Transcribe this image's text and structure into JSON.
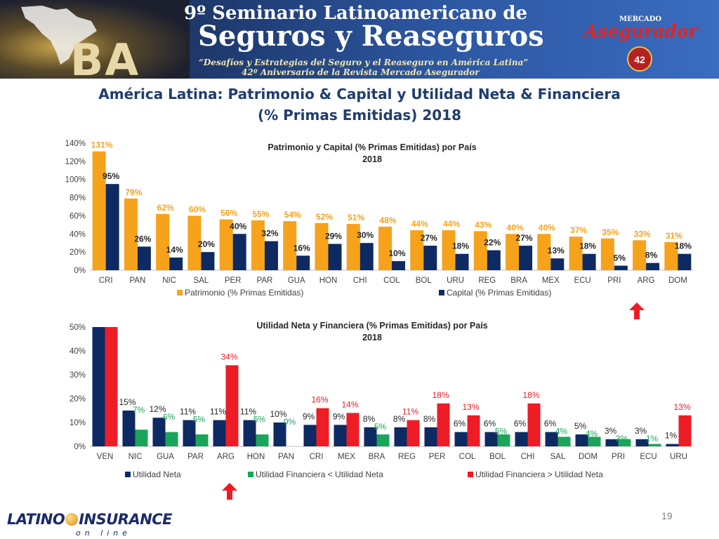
{
  "banner": {
    "line1": "9º Seminario Latinoamericano de",
    "line2": "Seguros y Reaseguros",
    "line3": "“Desafíos y Estrategias del Seguro y el Reaseguro en América Latina”",
    "line4": "42º Aniversario de la Revista Mercado Asegurador",
    "city_mark": "BA",
    "brand_small": "MERCADO",
    "brand_big": "Asegurador",
    "brand_badge": "42"
  },
  "page_title": {
    "line1": "América Latina: Patrimonio & Capital y Utilidad Neta & Financiera",
    "line2": "(% Primas Emitidas) 2018"
  },
  "colors": {
    "orange": "#F7A21B",
    "navy": "#0E2A63",
    "green": "#1AA55A",
    "red": "#EE1C25"
  },
  "chart_data": [
    {
      "type": "bar",
      "title": "Patrimonio y Capital (% Primas Emitidas) por País",
      "subtitle": "2018",
      "categories": [
        "CRI",
        "PAN",
        "NIC",
        "SAL",
        "PER",
        "PAR",
        "GUA",
        "HON",
        "CHI",
        "COL",
        "BOL",
        "URU",
        "REG",
        "BRA",
        "MEX",
        "ECU",
        "PRI",
        "ARG",
        "DOM"
      ],
      "series": [
        {
          "name": "Patrimonio (% Primas Emitidas)",
          "color": "#F7A21B",
          "values": [
            131,
            79,
            62,
            60,
            56,
            55,
            54,
            52,
            51,
            48,
            44,
            44,
            43,
            40,
            40,
            37,
            35,
            33,
            31
          ]
        },
        {
          "name": "Capital (% Primas Emitidas)",
          "color": "#0E2A63",
          "values": [
            95,
            26,
            14,
            20,
            40,
            32,
            16,
            29,
            30,
            10,
            27,
            18,
            22,
            27,
            13,
            18,
            5,
            8,
            18
          ]
        }
      ],
      "ylim": [
        0,
        140
      ],
      "yticks": [
        "0%",
        "20%",
        "40%",
        "60%",
        "80%",
        "100%",
        "120%",
        "140%"
      ],
      "legend": "bottom",
      "grid": false,
      "highlight": "ARG"
    },
    {
      "type": "bar",
      "title": "Utilidad Neta y Financiera (% Primas Emitidas) por País",
      "subtitle": "2018",
      "categories": [
        "VEN",
        "NIC",
        "GUA",
        "PAR",
        "ARG",
        "HON",
        "PAN",
        "CRI",
        "MEX",
        "BRA",
        "REG",
        "PER",
        "COL",
        "BOL",
        "CHI",
        "SAL",
        "DOM",
        "PRI",
        "ECU",
        "URU"
      ],
      "series": [
        {
          "name": "Utilidad Neta",
          "color": "#0E2A63",
          "values": [
            50,
            15,
            12,
            11,
            11,
            11,
            10,
            9,
            9,
            8,
            8,
            8,
            6,
            6,
            6,
            6,
            5,
            3,
            3,
            1
          ],
          "labels": [
            "",
            "15%",
            "12%",
            "11%",
            "11%",
            "11%",
            "10%",
            "9%",
            "9%",
            "8%",
            "8%",
            "8%",
            "6%",
            "6%",
            "6%",
            "6%",
            "5%",
            "3%",
            "3%",
            "1%"
          ]
        },
        {
          "name": "Utilidad Financiera < Utilidad Neta",
          "color": "#1AA55A"
        },
        {
          "name": "Utilidad Financiera > Utilidad Neta",
          "color": "#EE1C25"
        }
      ],
      "financiera": {
        "values": [
          50,
          7,
          6,
          5,
          34,
          5,
          0,
          16,
          14,
          5,
          11,
          18,
          13,
          5,
          18,
          4,
          4,
          3,
          1,
          13
        ],
        "labels": [
          "",
          "7%",
          "6%",
          "5%",
          "34%",
          "5%",
          "0%",
          "16%",
          "14%",
          "5%",
          "11%",
          "18%",
          "13%",
          "5%",
          "18%",
          "4%",
          "4%",
          "3%",
          "1%",
          "13%"
        ],
        "kind": [
          "red",
          "green",
          "green",
          "green",
          "red",
          "green",
          "green",
          "red",
          "red",
          "green",
          "red",
          "red",
          "red",
          "green",
          "red",
          "green",
          "green",
          "green",
          "green",
          "red"
        ]
      },
      "ylim": [
        0,
        50
      ],
      "yticks": [
        "0%",
        "10%",
        "20%",
        "30%",
        "40%",
        "50%"
      ],
      "legend": "bottom",
      "grid": false,
      "highlight": "ARG"
    }
  ],
  "footer": {
    "logo_left": "LATINO",
    "logo_right": "INSURANCE",
    "logo_sub": "on line",
    "page_number": "19"
  }
}
